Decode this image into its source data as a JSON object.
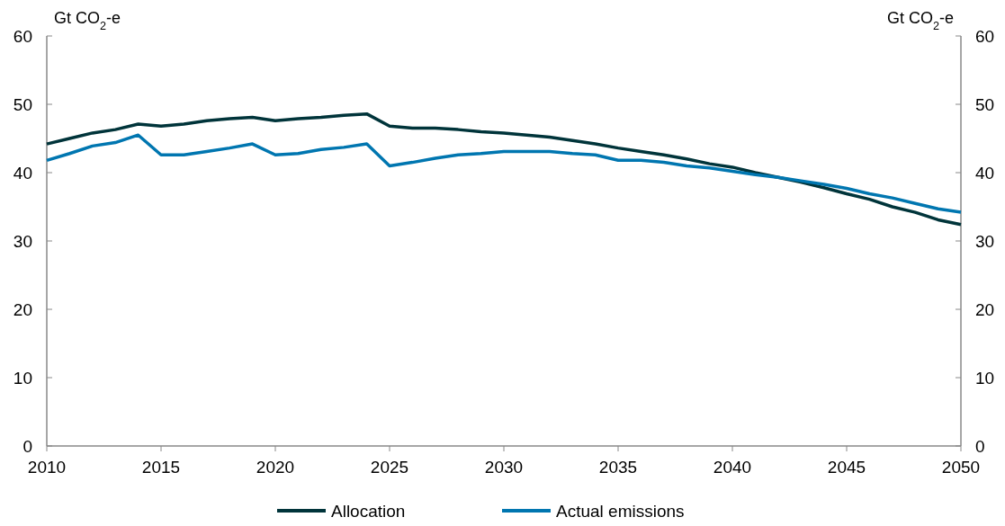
{
  "chart_data": {
    "type": "line",
    "ylabel": "Gt CO$_{2}$-e",
    "y2label": "Gt CO$_{2}$-e",
    "x": [
      2010,
      2011,
      2012,
      2013,
      2014,
      2015,
      2016,
      2017,
      2018,
      2019,
      2020,
      2021,
      2022,
      2023,
      2024,
      2025,
      2026,
      2027,
      2028,
      2029,
      2030,
      2031,
      2032,
      2033,
      2034,
      2035,
      2036,
      2037,
      2038,
      2039,
      2040,
      2041,
      2042,
      2043,
      2044,
      2045,
      2046,
      2047,
      2048,
      2049,
      2050
    ],
    "xlim": [
      2010,
      2050
    ],
    "xticks": [
      2010,
      2015,
      2020,
      2025,
      2030,
      2035,
      2040,
      2045,
      2050
    ],
    "ylim": [
      0,
      60
    ],
    "yticks": [
      0,
      10,
      20,
      30,
      40,
      50,
      60
    ],
    "y2lim": [
      0,
      60
    ],
    "y2ticks": [
      0,
      10,
      20,
      30,
      40,
      50,
      60
    ],
    "series": [
      {
        "name": "Allocation",
        "color": "#00343a",
        "values": [
          44.2,
          45.0,
          45.8,
          46.3,
          47.1,
          46.8,
          47.1,
          47.6,
          47.9,
          48.1,
          47.6,
          47.9,
          48.1,
          48.4,
          48.6,
          46.8,
          46.5,
          46.5,
          46.3,
          46.0,
          45.8,
          45.5,
          45.2,
          44.7,
          44.2,
          43.6,
          43.1,
          42.6,
          42.0,
          41.3,
          40.8,
          40.0,
          39.3,
          38.6,
          37.8,
          36.9,
          36.1,
          35.0,
          34.2,
          33.1,
          32.4
        ]
      },
      {
        "name": "Actual emissions",
        "color": "#0076b0",
        "values": [
          41.8,
          42.8,
          43.9,
          44.4,
          45.5,
          42.6,
          42.6,
          43.1,
          43.6,
          44.2,
          42.6,
          42.8,
          43.4,
          43.7,
          44.2,
          41.0,
          41.5,
          42.1,
          42.6,
          42.8,
          43.1,
          43.1,
          43.1,
          42.8,
          42.6,
          41.8,
          41.8,
          41.5,
          41.0,
          40.7,
          40.2,
          39.7,
          39.3,
          38.8,
          38.3,
          37.7,
          36.9,
          36.3,
          35.5,
          34.7,
          34.2
        ]
      }
    ],
    "grid": false,
    "legend": "bottom",
    "marker": "none",
    "line_style": "solid"
  }
}
